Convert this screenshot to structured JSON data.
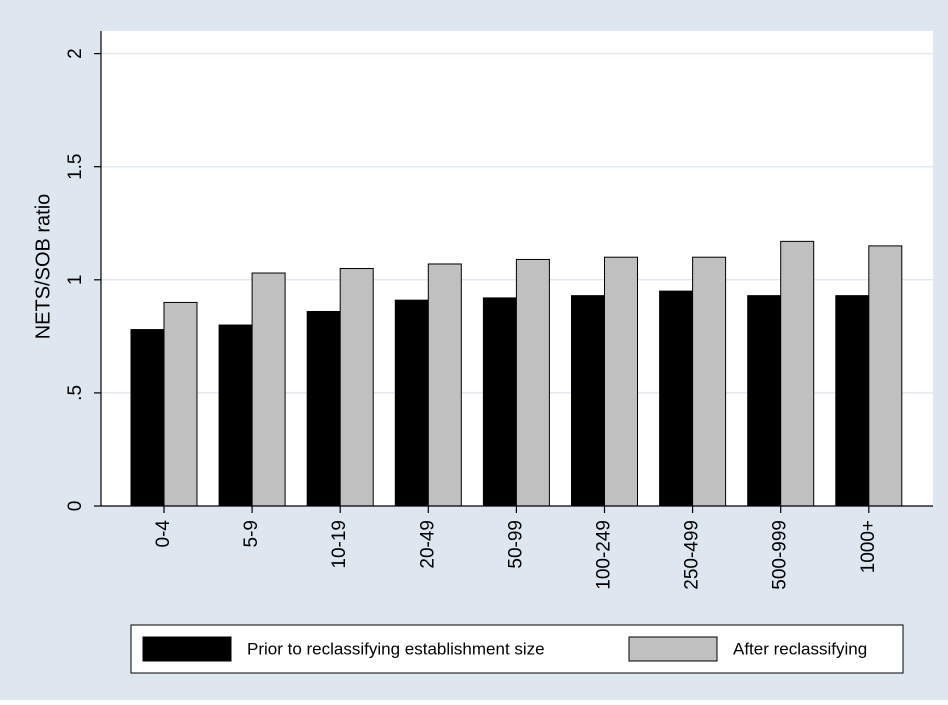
{
  "colors": {
    "background": "#dee6ef",
    "plot_area": "#ffffff",
    "gridline": "#e3e9f1",
    "axis": "#000000",
    "series_prior": "#000000",
    "series_after": "#c0c0c0"
  },
  "chart_data": {
    "type": "bar",
    "title": "",
    "xlabel": "",
    "ylabel": "NETS/SOB ratio",
    "ylim": [
      0,
      2.1
    ],
    "yticks": [
      0,
      0.5,
      1,
      1.5,
      2
    ],
    "ytick_labels": [
      "0",
      ".5",
      "1",
      "1.5",
      "2"
    ],
    "grid": true,
    "legend_position": "bottom",
    "categories": [
      "0-4",
      "5-9",
      "10-19",
      "20-49",
      "50-99",
      "100-249",
      "250-499",
      "500-999",
      "1000+"
    ],
    "series": [
      {
        "name": "Prior to reclassifying establishment size",
        "color": "#000000",
        "values": [
          0.78,
          0.8,
          0.86,
          0.91,
          0.92,
          0.93,
          0.95,
          0.93,
          0.93
        ]
      },
      {
        "name": "After reclassifying",
        "color": "#c0c0c0",
        "values": [
          0.9,
          1.03,
          1.05,
          1.07,
          1.09,
          1.1,
          1.1,
          1.17,
          1.15
        ]
      }
    ]
  }
}
